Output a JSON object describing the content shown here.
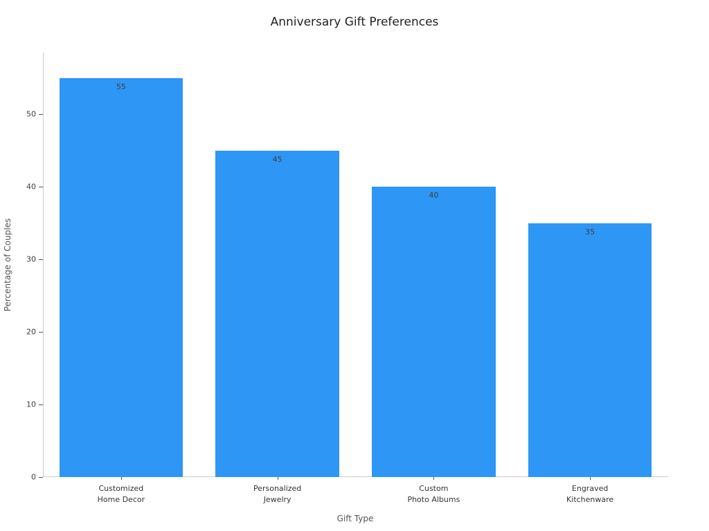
{
  "chart_data": {
    "type": "bar",
    "title": "Anniversary Gift Preferences",
    "xlabel": "Gift Type",
    "ylabel": "Percentage of Couples",
    "categories": [
      "Customized\nHome Decor",
      "Personalized\nJewelry",
      "Custom\nPhoto Albums",
      "Engraved\nKitchenware"
    ],
    "values": [
      55,
      45,
      40,
      35
    ],
    "yticks": [
      0,
      10,
      20,
      30,
      40,
      50
    ],
    "ylim": [
      0,
      58.5
    ],
    "bar_color": "#2E96F5",
    "bar_width_fraction": 0.79,
    "grid": false,
    "legend": false,
    "value_label_position": "inside-top"
  }
}
